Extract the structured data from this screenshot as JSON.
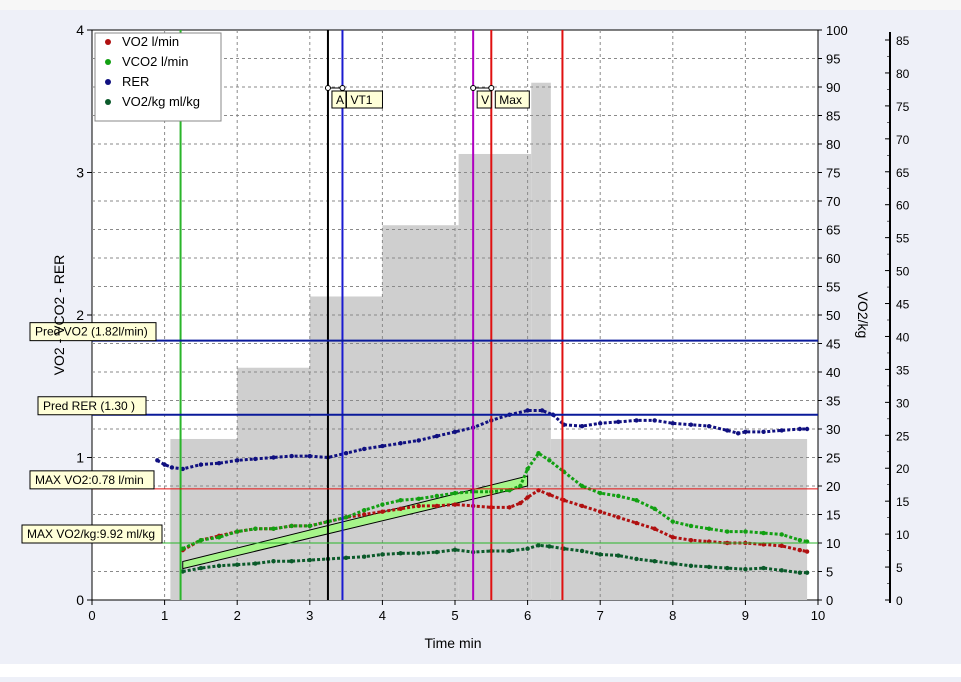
{
  "chart_data": {
    "type": "line",
    "xlabel": "Time min",
    "ylabel_left": "VO2 - VCO2 - RER",
    "ylabel_right": "VO2/kg",
    "xlim": [
      0,
      10
    ],
    "ylim_left": [
      0,
      4
    ],
    "ylim_right": [
      0,
      100
    ],
    "ylim_far_right": [
      0,
      85
    ],
    "x_ticks": [
      0,
      1,
      2,
      3,
      4,
      5,
      6,
      7,
      8,
      9,
      10
    ],
    "y_ticks_left": [
      0,
      1,
      2,
      3,
      4
    ],
    "y_ticks_right": [
      0,
      5,
      10,
      15,
      20,
      25,
      30,
      35,
      40,
      45,
      50,
      55,
      60,
      65,
      70,
      75,
      80,
      85,
      90,
      95,
      100
    ],
    "y_ticks_far_right": [
      0,
      5,
      10,
      15,
      20,
      25,
      30,
      35,
      40,
      45,
      50,
      55,
      60,
      65,
      70,
      75,
      80,
      85
    ],
    "grid": true,
    "legend_position": "top-left",
    "workload_bars": [
      {
        "x0": 1.08,
        "x1": 2.0,
        "y": 1.13
      },
      {
        "x0": 2.0,
        "x1": 3.0,
        "y": 1.63
      },
      {
        "x0": 3.0,
        "x1": 4.0,
        "y": 2.13
      },
      {
        "x0": 4.0,
        "x1": 5.05,
        "y": 2.63
      },
      {
        "x0": 5.05,
        "x1": 6.05,
        "y": 3.13
      },
      {
        "x0": 6.05,
        "x1": 6.32,
        "y": 3.63
      },
      {
        "x0": 6.32,
        "x1": 6.45,
        "y": 1.13
      },
      {
        "x0": 6.45,
        "x1": 9.85,
        "y": 1.13
      }
    ],
    "series": [
      {
        "name": "VO2 l/min",
        "color": "#b01010",
        "x": [
          1.25,
          1.5,
          1.75,
          2.0,
          2.25,
          2.5,
          2.75,
          3.0,
          3.25,
          3.5,
          3.75,
          4.0,
          4.25,
          4.5,
          4.75,
          5.0,
          5.25,
          5.5,
          5.75,
          5.9,
          6.0,
          6.15,
          6.3,
          6.5,
          6.75,
          7.0,
          7.25,
          7.5,
          7.75,
          8.0,
          8.25,
          8.5,
          8.75,
          9.0,
          9.25,
          9.5,
          9.75,
          9.85
        ],
        "y": [
          0.35,
          0.42,
          0.45,
          0.48,
          0.5,
          0.5,
          0.52,
          0.52,
          0.55,
          0.58,
          0.6,
          0.62,
          0.64,
          0.66,
          0.66,
          0.67,
          0.66,
          0.65,
          0.65,
          0.68,
          0.72,
          0.77,
          0.74,
          0.7,
          0.66,
          0.62,
          0.58,
          0.54,
          0.5,
          0.44,
          0.42,
          0.41,
          0.4,
          0.4,
          0.39,
          0.38,
          0.35,
          0.34
        ]
      },
      {
        "name": "VCO2 l/min",
        "color": "#12a012",
        "x": [
          1.25,
          1.5,
          1.75,
          2.0,
          2.25,
          2.5,
          2.75,
          3.0,
          3.25,
          3.5,
          3.75,
          4.0,
          4.25,
          4.5,
          4.75,
          5.0,
          5.25,
          5.5,
          5.75,
          5.9,
          6.0,
          6.15,
          6.3,
          6.5,
          6.75,
          7.0,
          7.25,
          7.5,
          7.75,
          8.0,
          8.25,
          8.5,
          8.75,
          9.0,
          9.25,
          9.5,
          9.75,
          9.85
        ],
        "y": [
          0.36,
          0.42,
          0.44,
          0.48,
          0.5,
          0.5,
          0.52,
          0.52,
          0.55,
          0.58,
          0.63,
          0.67,
          0.7,
          0.71,
          0.73,
          0.75,
          0.76,
          0.76,
          0.77,
          0.8,
          0.92,
          1.03,
          0.98,
          0.9,
          0.8,
          0.75,
          0.73,
          0.7,
          0.64,
          0.55,
          0.52,
          0.5,
          0.48,
          0.48,
          0.47,
          0.46,
          0.42,
          0.41
        ]
      },
      {
        "name": "RER",
        "color": "#101080",
        "x": [
          0.9,
          1.0,
          1.1,
          1.25,
          1.5,
          1.75,
          2.0,
          2.25,
          2.5,
          2.75,
          3.0,
          3.25,
          3.5,
          3.75,
          4.0,
          4.25,
          4.5,
          4.75,
          5.0,
          5.25,
          5.5,
          5.75,
          6.0,
          6.2,
          6.35,
          6.5,
          6.75,
          7.0,
          7.25,
          7.5,
          7.75,
          8.0,
          8.25,
          8.5,
          8.75,
          8.9,
          9.0,
          9.25,
          9.5,
          9.75,
          9.85
        ],
        "y": [
          0.98,
          0.95,
          0.93,
          0.92,
          0.95,
          0.96,
          0.98,
          0.99,
          1.0,
          1.01,
          1.01,
          1.0,
          1.03,
          1.06,
          1.08,
          1.1,
          1.12,
          1.15,
          1.18,
          1.21,
          1.26,
          1.3,
          1.33,
          1.33,
          1.3,
          1.23,
          1.22,
          1.24,
          1.25,
          1.26,
          1.26,
          1.24,
          1.23,
          1.22,
          1.19,
          1.17,
          1.18,
          1.18,
          1.19,
          1.2,
          1.2
        ]
      },
      {
        "name": "VO2/kg ml/kg",
        "color": "#0b5a2a",
        "x": [
          1.25,
          1.5,
          1.75,
          2.0,
          2.25,
          2.5,
          2.75,
          3.0,
          3.25,
          3.5,
          3.75,
          4.0,
          4.25,
          4.5,
          4.75,
          5.0,
          5.25,
          5.5,
          5.75,
          6.0,
          6.15,
          6.3,
          6.5,
          6.75,
          7.0,
          7.25,
          7.5,
          7.75,
          8.0,
          8.25,
          8.5,
          8.75,
          9.0,
          9.25,
          9.5,
          9.75,
          9.85
        ],
        "y": [
          5.0,
          5.6,
          6.0,
          6.2,
          6.4,
          6.8,
          6.8,
          7.0,
          7.2,
          7.4,
          7.6,
          8.0,
          8.2,
          8.2,
          8.4,
          8.8,
          8.4,
          8.6,
          8.6,
          9.0,
          9.6,
          9.4,
          9.0,
          8.6,
          8.0,
          7.8,
          7.2,
          6.8,
          6.4,
          6.0,
          5.8,
          5.6,
          5.4,
          5.6,
          5.2,
          4.8,
          4.8
        ]
      }
    ],
    "threshold_lines": [
      {
        "x": 1.22,
        "color": "#2ab52a"
      },
      {
        "x": 3.25,
        "color": "#000000",
        "label": "A"
      },
      {
        "x": 3.45,
        "color": "#1a1ad0",
        "label": "VT1"
      },
      {
        "x": 5.25,
        "color": "#b000c0",
        "label": "V"
      },
      {
        "x": 5.5,
        "color": "#e01010",
        "label": "Max"
      },
      {
        "x": 6.48,
        "color": "#e01010"
      }
    ],
    "reference_lines": [
      {
        "label": "Pred VO2 (1.82l/min)",
        "y": 1.82,
        "color": "#0a1a9a"
      },
      {
        "label": "Pred RER (1.30 )",
        "y": 1.3,
        "color": "#0a1a9a"
      },
      {
        "label": "MAX VO2:0.78 l/min",
        "y": 0.78,
        "color": "#e01010"
      },
      {
        "label": "MAX VO2/kg:9.92 ml/kg",
        "y": 0.4,
        "color": "#2ab52a"
      }
    ],
    "slope_band": {
      "x0": 1.25,
      "x1": 6.0,
      "y_low0": 0.22,
      "y_low1": 0.8,
      "y_high0": 0.27,
      "y_high1": 0.87
    }
  }
}
